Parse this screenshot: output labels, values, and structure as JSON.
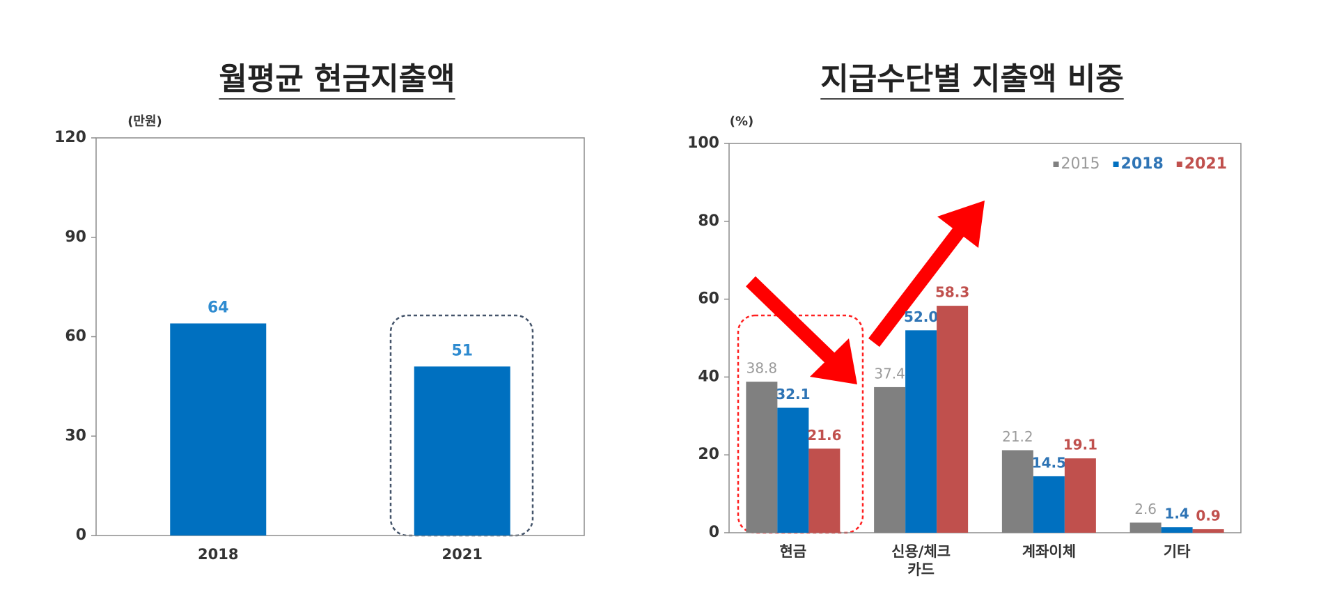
{
  "chart_data": [
    {
      "type": "bar",
      "title": "월평균 현금지출액",
      "unit": "(만원)",
      "categories": [
        "2018",
        "2021"
      ],
      "values": [
        64,
        51
      ],
      "color": "#0070c0",
      "label_color": "#2e8bd0",
      "ylim": [
        0,
        120
      ],
      "yticks": [
        0,
        30,
        60,
        90,
        120
      ]
    },
    {
      "type": "grouped-bar",
      "title": "지급수단별 지출액 비중",
      "unit": "(%)",
      "categories": [
        "현금",
        "신용/체크\n카드",
        "계좌이체",
        "기타"
      ],
      "series": [
        {
          "name": "2015",
          "color": "#808080",
          "label_color": "#9a9a9a",
          "values": [
            38.8,
            37.4,
            21.2,
            2.6
          ],
          "value_labels": [
            "38.8",
            "37.4",
            "21.2",
            "2.6"
          ]
        },
        {
          "name": "2018",
          "color": "#0070c0",
          "label_color": "#2e74b5",
          "values": [
            32.1,
            52,
            14.5,
            1.4
          ],
          "value_labels": [
            "32.1",
            "52.0",
            "14.5",
            "1.4"
          ]
        },
        {
          "name": "2021",
          "color": "#c0504d",
          "label_color": "#c0504d",
          "values": [
            21.6,
            58.3,
            19.1,
            0.9
          ],
          "value_labels": [
            "21.6",
            "58.3",
            "19.1",
            "0.9"
          ]
        }
      ],
      "ylim": [
        0,
        100
      ],
      "yticks": [
        0,
        20,
        40,
        60,
        80,
        100
      ],
      "legend": "top-right"
    }
  ]
}
